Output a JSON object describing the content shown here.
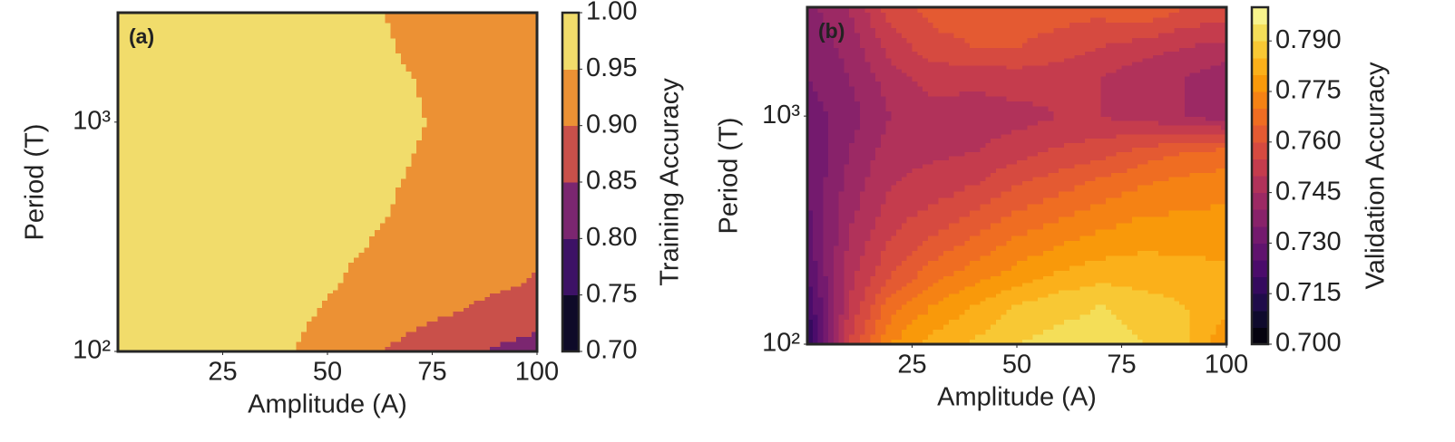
{
  "chart_data": [
    {
      "type": "contour",
      "annotation": "(a)",
      "xlabel": "Amplitude (A)",
      "ylabel": "Period (T)",
      "colorbar_label": "Training Accuracy",
      "xlim": [
        0,
        100
      ],
      "xticks": [
        25,
        50,
        75,
        100
      ],
      "ylim": [
        100,
        3000
      ],
      "yscale": "log",
      "yticks": [
        {
          "value": 100,
          "label": "10²"
        },
        {
          "value": 1000,
          "label": "10³"
        }
      ],
      "x": [
        0,
        10,
        20,
        30,
        40,
        50,
        60,
        70,
        80,
        90,
        100
      ],
      "y": [
        100,
        150,
        200,
        300,
        500,
        700,
        1000,
        1500,
        2000,
        3000
      ],
      "z": [
        [
          0.97,
          0.97,
          0.97,
          0.965,
          0.955,
          0.93,
          0.905,
          0.885,
          0.865,
          0.845,
          0.83
        ],
        [
          0.97,
          0.97,
          0.97,
          0.97,
          0.965,
          0.945,
          0.93,
          0.915,
          0.902,
          0.885,
          0.87
        ],
        [
          0.97,
          0.97,
          0.97,
          0.97,
          0.97,
          0.955,
          0.94,
          0.93,
          0.92,
          0.91,
          0.895
        ],
        [
          0.97,
          0.97,
          0.97,
          0.97,
          0.97,
          0.96,
          0.95,
          0.94,
          0.935,
          0.925,
          0.915
        ],
        [
          0.97,
          0.97,
          0.97,
          0.97,
          0.97,
          0.965,
          0.96,
          0.945,
          0.935,
          0.93,
          0.925
        ],
        [
          0.97,
          0.97,
          0.97,
          0.97,
          0.97,
          0.97,
          0.965,
          0.95,
          0.935,
          0.93,
          0.93
        ],
        [
          0.97,
          0.97,
          0.97,
          0.97,
          0.97,
          0.97,
          0.965,
          0.955,
          0.94,
          0.935,
          0.93
        ],
        [
          0.97,
          0.97,
          0.97,
          0.97,
          0.97,
          0.97,
          0.965,
          0.952,
          0.935,
          0.93,
          0.93
        ],
        [
          0.97,
          0.97,
          0.97,
          0.97,
          0.97,
          0.97,
          0.96,
          0.945,
          0.935,
          0.93,
          0.93
        ],
        [
          0.97,
          0.97,
          0.97,
          0.97,
          0.97,
          0.965,
          0.955,
          0.94,
          0.935,
          0.93,
          0.93
        ]
      ],
      "levels": [
        0.7,
        0.75,
        0.8,
        0.85,
        0.9,
        0.95,
        1.0
      ],
      "colors": [
        "#0e0a28",
        "#3d1266",
        "#7b2670",
        "#c9504a",
        "#ec9134",
        "#f1dc6b"
      ],
      "clim": [
        0.7,
        1.0
      ],
      "cticks": [
        {
          "value": 0.7,
          "label": "0.70"
        },
        0.75,
        {
          "value": 0.8,
          "label": "0.80"
        },
        0.85,
        {
          "value": 0.9,
          "label": "0.90"
        },
        0.95,
        {
          "value": 1,
          "label": "1.00"
        }
      ]
    },
    {
      "type": "contour",
      "annotation": "(b)",
      "xlabel": "Amplitude (A)",
      "ylabel": "Period (T)",
      "colorbar_label": "Validation Accuracy",
      "xlim": [
        0,
        100
      ],
      "xticks": [
        25,
        50,
        75,
        100
      ],
      "ylim": [
        100,
        3000
      ],
      "yscale": "log",
      "yticks": [
        {
          "value": 100,
          "label": "10²"
        },
        {
          "value": 1000,
          "label": "10³"
        }
      ],
      "x": [
        0,
        10,
        20,
        30,
        40,
        50,
        60,
        70,
        80,
        90,
        100
      ],
      "y": [
        100,
        150,
        200,
        300,
        500,
        700,
        1000,
        1500,
        2000,
        3000
      ],
      "z": [
        [
          0.715,
          0.755,
          0.775,
          0.782,
          0.786,
          0.79,
          0.792,
          0.793,
          0.79,
          0.787,
          0.775
        ],
        [
          0.72,
          0.75,
          0.768,
          0.775,
          0.78,
          0.785,
          0.788,
          0.79,
          0.787,
          0.785,
          0.783
        ],
        [
          0.725,
          0.748,
          0.76,
          0.768,
          0.773,
          0.777,
          0.781,
          0.783,
          0.783,
          0.782,
          0.781
        ],
        [
          0.728,
          0.745,
          0.755,
          0.76,
          0.765,
          0.77,
          0.773,
          0.776,
          0.778,
          0.778,
          0.778
        ],
        [
          0.73,
          0.742,
          0.75,
          0.752,
          0.755,
          0.76,
          0.763,
          0.767,
          0.77,
          0.772,
          0.773
        ],
        [
          0.73,
          0.74,
          0.748,
          0.749,
          0.75,
          0.753,
          0.756,
          0.758,
          0.762,
          0.765,
          0.767
        ],
        [
          0.732,
          0.738,
          0.745,
          0.748,
          0.747,
          0.748,
          0.75,
          0.75,
          0.748,
          0.745,
          0.742
        ],
        [
          0.735,
          0.74,
          0.748,
          0.752,
          0.752,
          0.753,
          0.752,
          0.75,
          0.747,
          0.745,
          0.742
        ],
        [
          0.735,
          0.742,
          0.752,
          0.758,
          0.76,
          0.76,
          0.758,
          0.755,
          0.752,
          0.75,
          0.748
        ],
        [
          0.738,
          0.745,
          0.758,
          0.762,
          0.763,
          0.763,
          0.762,
          0.762,
          0.765,
          0.76,
          0.758
        ]
      ],
      "levels": [
        0.7,
        0.705,
        0.71,
        0.715,
        0.72,
        0.725,
        0.73,
        0.735,
        0.74,
        0.745,
        0.75,
        0.755,
        0.76,
        0.765,
        0.77,
        0.775,
        0.78,
        0.785,
        0.79,
        0.795,
        0.8
      ],
      "colors": [
        "#05030f",
        "#0f0a2d",
        "#200c4a",
        "#350a5e",
        "#4b0c6b",
        "#60136e",
        "#741a6e",
        "#88226a",
        "#9c2964",
        "#b1325a",
        "#c53c4d",
        "#d64a40",
        "#e45a32",
        "#ef6d22",
        "#f58214",
        "#f9990a",
        "#fbb01a",
        "#f8c834",
        "#f4de58",
        "#f8f48c"
      ],
      "clim": [
        0.7,
        0.8
      ],
      "cticks": [
        {
          "value": 0.7,
          "label": "0.700"
        },
        0.715,
        {
          "value": 0.73,
          "label": "0.730"
        },
        0.745,
        {
          "value": 0.76,
          "label": "0.760"
        },
        0.775,
        {
          "value": 0.79,
          "label": "0.790"
        }
      ]
    }
  ]
}
